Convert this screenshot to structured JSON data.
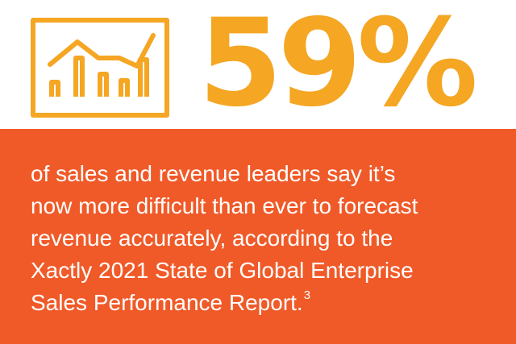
{
  "stat": {
    "value": "59%"
  },
  "icons": {
    "chart": "line-and-bar-chart-icon"
  },
  "statement": {
    "lines": [
      "of sales and revenue leaders say it’s",
      "now more difficult than ever to forecast",
      "revenue accurately, according to the",
      "Xactly 2021 State of Global Enterprise",
      "Sales Performance Report."
    ],
    "footnote": "3"
  },
  "colors": {
    "accent": "#f5a623",
    "panel": "#f05a28",
    "text_on_panel": "#ffffff",
    "background": "#ffffff"
  }
}
